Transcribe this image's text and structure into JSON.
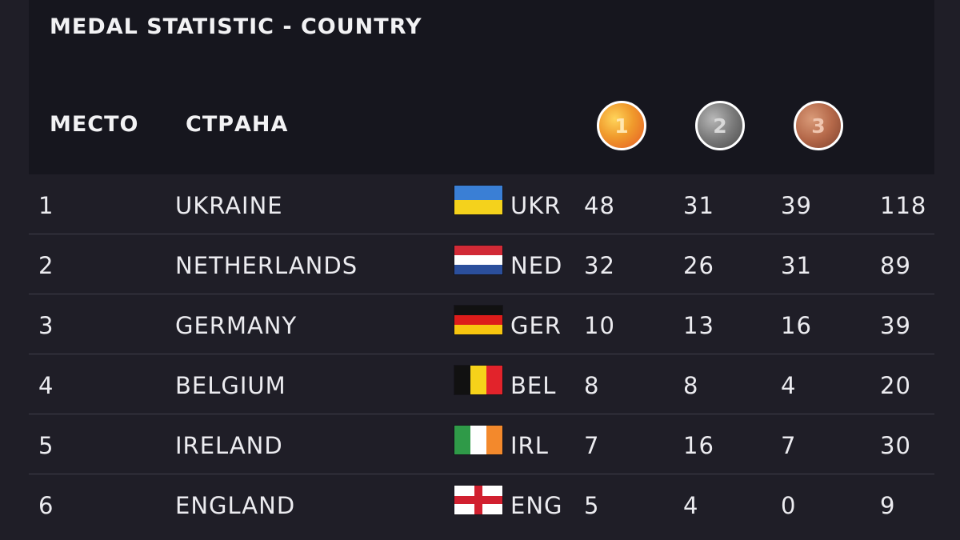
{
  "title": "MEDAL STATISTIC - COUNTRY",
  "columns": {
    "place": "МЕСТО",
    "country": "СТРАНА"
  },
  "medals": {
    "gold": "1",
    "silver": "2",
    "bronze": "3"
  },
  "rows": [
    {
      "rank": "1",
      "name": "UKRAINE",
      "code": "UKR",
      "flag": "ukraine-flag-icon",
      "gold": "48",
      "silver": "31",
      "bronze": "39",
      "total": "118"
    },
    {
      "rank": "2",
      "name": "NETHERLANDS",
      "code": "NED",
      "flag": "netherlands-flag-icon",
      "gold": "32",
      "silver": "26",
      "bronze": "31",
      "total": "89"
    },
    {
      "rank": "3",
      "name": "GERMANY",
      "code": "GER",
      "flag": "germany-flag-icon",
      "gold": "10",
      "silver": "13",
      "bronze": "16",
      "total": "39"
    },
    {
      "rank": "4",
      "name": "BELGIUM",
      "code": "BEL",
      "flag": "belgium-flag-icon",
      "gold": "8",
      "silver": "8",
      "bronze": "4",
      "total": "20"
    },
    {
      "rank": "5",
      "name": "IRELAND",
      "code": "IRL",
      "flag": "ireland-flag-icon",
      "gold": "7",
      "silver": "16",
      "bronze": "7",
      "total": "30"
    },
    {
      "rank": "6",
      "name": "ENGLAND",
      "code": "ENG",
      "flag": "england-flag-icon",
      "gold": "5",
      "silver": "4",
      "bronze": "0",
      "total": "9"
    }
  ],
  "colors": {
    "background": "#1f1e27",
    "header_panel": "#16161e",
    "divider": "#3f3e4a",
    "text": "#ececf0"
  }
}
